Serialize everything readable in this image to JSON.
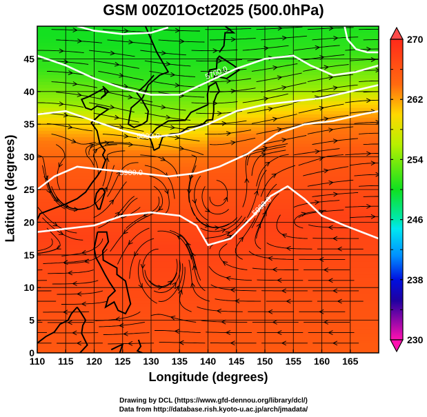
{
  "chart_data": {
    "type": "heatmap",
    "title": "GSM 00Z01Oct2025 (500.0hPa)",
    "xlabel": "Longitude (degrees)",
    "ylabel": "Latitude  (degrees)",
    "xlim": [
      110,
      170
    ],
    "ylim": [
      0,
      50
    ],
    "x_ticks": [
      "110",
      "115",
      "120",
      "125",
      "130",
      "135",
      "140",
      "145",
      "150",
      "155",
      "160",
      "165"
    ],
    "y_ticks": [
      "0",
      "5",
      "10",
      "15",
      "20",
      "25",
      "30",
      "35",
      "40",
      "45"
    ],
    "grid": true,
    "colorbar": {
      "range": [
        230,
        270
      ],
      "ticks": [
        "270",
        "262",
        "254",
        "246",
        "238",
        "230"
      ],
      "extend": "both",
      "placement": "right"
    },
    "fill_field": {
      "description_units": "temperature (K)",
      "latitude_profile": [
        {
          "lat": 50,
          "value": 254
        },
        {
          "lat": 45,
          "value": 255
        },
        {
          "lat": 40,
          "value": 258
        },
        {
          "lat": 37,
          "value": 262
        },
        {
          "lat": 34,
          "value": 265
        },
        {
          "lat": 30,
          "value": 266
        },
        {
          "lat": 25,
          "value": 267
        },
        {
          "lat": 20,
          "value": 268
        },
        {
          "lat": 10,
          "value": 267
        },
        {
          "lat": 0,
          "value": 266
        }
      ]
    },
    "contours": [
      {
        "label": "5700.0",
        "points": [
          [
            110,
            45.5
          ],
          [
            115,
            44
          ],
          [
            120,
            42
          ],
          [
            125,
            40.5
          ],
          [
            130,
            39.5
          ],
          [
            135,
            39.5
          ],
          [
            140,
            41.5
          ],
          [
            145,
            43.5
          ],
          [
            150,
            45
          ],
          [
            155,
            45.5
          ],
          [
            158,
            44
          ],
          [
            162,
            42.5
          ],
          [
            166,
            43
          ],
          [
            170,
            44
          ]
        ]
      },
      {
        "label": "5800.0",
        "points": [
          [
            110,
            36.5
          ],
          [
            115,
            37
          ],
          [
            120,
            35.5
          ],
          [
            125,
            34
          ],
          [
            130,
            33
          ],
          [
            135,
            33.5
          ],
          [
            140,
            35
          ],
          [
            145,
            37
          ],
          [
            150,
            38
          ],
          [
            155,
            38.5
          ],
          [
            160,
            39
          ],
          [
            165,
            40
          ],
          [
            170,
            41
          ]
        ]
      },
      {
        "label": "5900.0",
        "points": [
          [
            110,
            25
          ],
          [
            113,
            27
          ],
          [
            117,
            28.5
          ],
          [
            122,
            28
          ],
          [
            128,
            27.5
          ],
          [
            133,
            27
          ],
          [
            138,
            27.5
          ],
          [
            142,
            28.5
          ],
          [
            147,
            30.5
          ],
          [
            152,
            33.5
          ],
          [
            157,
            35
          ],
          [
            162,
            35.5
          ],
          [
            167,
            36.5
          ],
          [
            170,
            37
          ]
        ]
      },
      {
        "label": "5900.0",
        "points": [
          [
            110,
            18.5
          ],
          [
            115,
            19
          ],
          [
            120,
            19.5
          ],
          [
            125,
            21
          ],
          [
            130,
            21.5
          ],
          [
            135,
            21
          ],
          [
            138,
            19.5
          ],
          [
            140,
            16.5
          ],
          [
            144,
            17.5
          ],
          [
            148,
            21
          ],
          [
            151,
            24
          ],
          [
            154,
            25.5
          ],
          [
            157,
            23.5
          ],
          [
            160,
            21
          ],
          [
            164,
            19.5
          ],
          [
            167,
            18.5
          ],
          [
            170,
            17.5
          ]
        ]
      },
      {
        "label": "",
        "points": [
          [
            164,
            50
          ],
          [
            164.5,
            48
          ],
          [
            166,
            46.5
          ],
          [
            168,
            46
          ],
          [
            170,
            46
          ]
        ]
      },
      {
        "label": "",
        "points": [
          [
            117,
            50
          ],
          [
            120,
            49.3
          ],
          [
            125,
            48.8
          ],
          [
            130,
            49
          ],
          [
            133,
            49.8
          ]
        ]
      }
    ],
    "vortices": [
      {
        "lon": 141.5,
        "lat": 24
      },
      {
        "lon": 131.5,
        "lat": 13.5
      },
      {
        "lon": 117,
        "lat": 26.5
      }
    ]
  },
  "credits": {
    "line1": "Drawing by DCL (https://www.gfd-dennou.org/library/dcl/)",
    "line2": "Data from http://database.rish.kyoto-u.ac.jp/arch/jmadata/"
  },
  "colors": {
    "contour": "#ffffff",
    "streamline": "#000000",
    "coastline": "#000000"
  }
}
